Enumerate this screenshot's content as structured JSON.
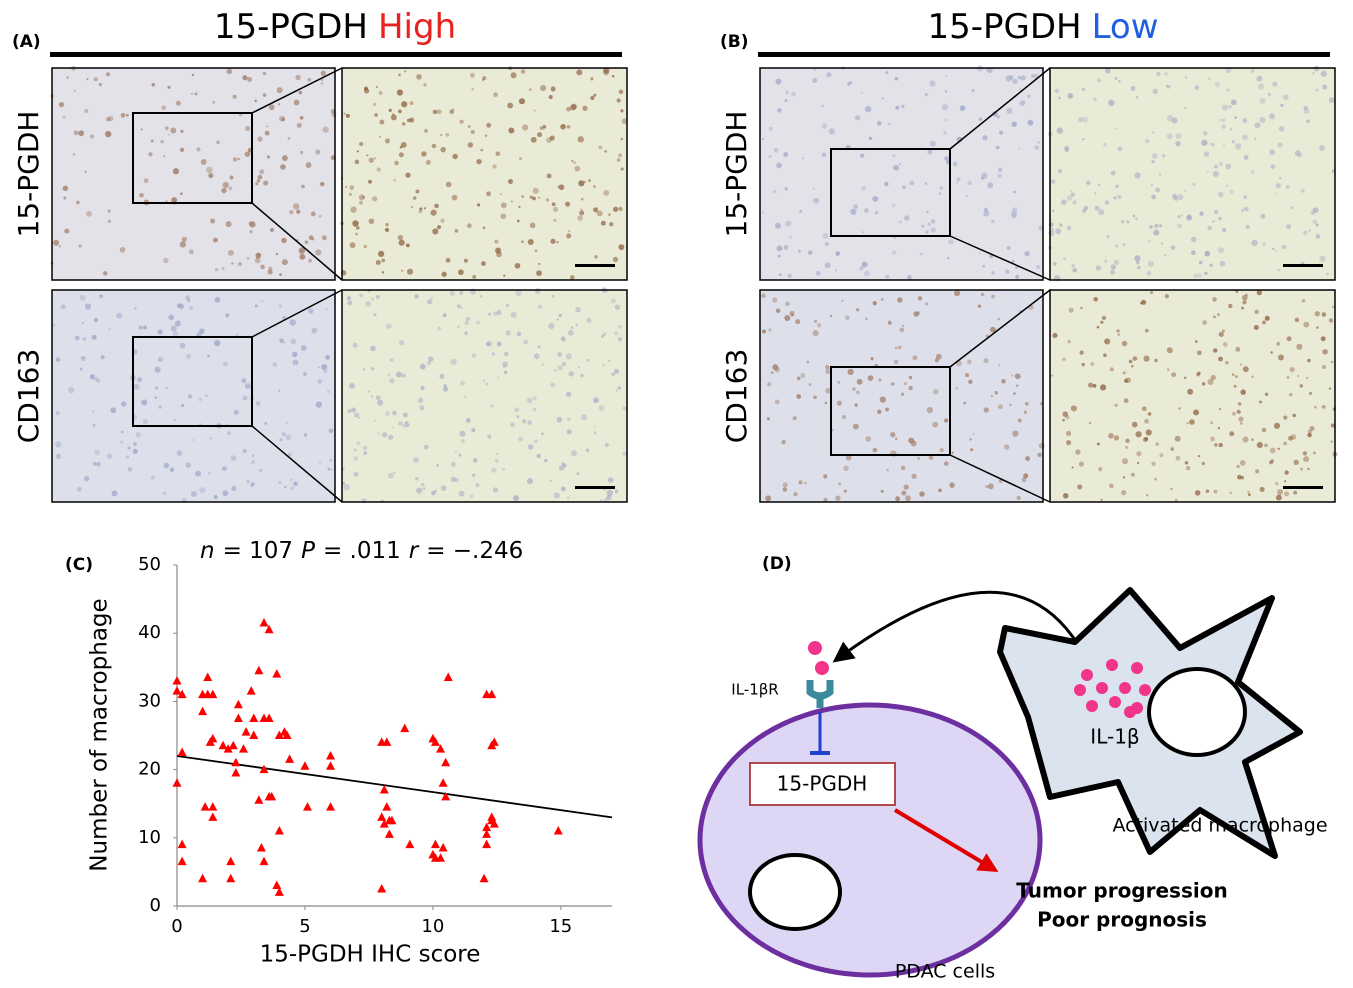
{
  "panel_a": {
    "label": "(A)",
    "title": "15-PGDH",
    "title_highlight": "High",
    "highlight_color": "#e8231f",
    "rows": [
      "15-PGDH",
      "CD163"
    ]
  },
  "panel_b": {
    "label": "(B)",
    "title": "15-PGDH",
    "title_highlight": "Low",
    "highlight_color": "#1f5fe0",
    "rows": [
      "15-PGDH",
      "CD163"
    ]
  },
  "chart_data": {
    "type": "scatter",
    "label": "(C)",
    "annotation": [
      {
        "text": "n",
        "italic": true
      },
      {
        "text": "= 107"
      },
      {
        "text": "P",
        "italic": true
      },
      {
        "text": "= .011"
      },
      {
        "text": "r",
        "italic": true
      },
      {
        "text": "= −.246"
      }
    ],
    "xlabel": "15-PGDH IHC score",
    "ylabel": "Number of macrophage",
    "x": [
      0,
      0,
      0.2,
      0,
      0.2,
      0.2,
      0.2,
      1.2,
      1,
      1.2,
      1.4,
      1,
      1.4,
      1.3,
      1.1,
      1.4,
      1.4,
      1,
      2.1,
      2.1,
      1.8,
      2,
      2.2,
      2.4,
      2.4,
      2.3,
      2.3,
      2.6,
      2.7,
      2.9,
      3,
      3,
      3.2,
      3.4,
      3.6,
      3.4,
      3.6,
      3.4,
      3.2,
      3.3,
      3.4,
      3.6,
      3.7,
      3.9,
      4,
      4.2,
      4.3,
      3.9,
      4,
      4,
      4.4,
      5,
      5.1,
      6,
      6,
      6,
      8,
      8.2,
      8.1,
      8,
      8.1,
      8.3,
      8,
      8.2,
      8.4,
      8.3,
      8.9,
      9.1,
      10,
      10.1,
      10.3,
      10.1,
      10,
      10.1,
      10.3,
      10.4,
      10.5,
      10.6,
      10.5,
      10.4,
      12.1,
      12.3,
      12,
      12.1,
      12.3,
      12.4,
      12.3,
      12.4,
      12.1,
      12.1,
      12.3,
      14.9
    ],
    "values": [
      31.5,
      33,
      31,
      18,
      9,
      6.5,
      22.5,
      33.5,
      31,
      31,
      31,
      28.5,
      24.5,
      24,
      14.5,
      13,
      14.5,
      4,
      6.5,
      4,
      23.5,
      23,
      23.5,
      29.5,
      27.5,
      21,
      19.5,
      23,
      25.5,
      31.5,
      27.5,
      25,
      34.5,
      41.5,
      40.5,
      27.5,
      27.5,
      20,
      15.5,
      8.5,
      6.5,
      16,
      16,
      34,
      25,
      25.5,
      25,
      3,
      2,
      11,
      21.5,
      20.5,
      14.5,
      22,
      20.5,
      14.5,
      24,
      24,
      17,
      13,
      12,
      12.5,
      2.5,
      14.5,
      12.5,
      10.5,
      26,
      9,
      24.5,
      24,
      23,
      9,
      7.5,
      7,
      7,
      18,
      16,
      33.5,
      21,
      8.5,
      31,
      31,
      4,
      9,
      23.5,
      24,
      13,
      12,
      11.5,
      10.5,
      12.5,
      11
    ],
    "color": "#ff0000",
    "xlim": [
      0,
      17
    ],
    "ylim": [
      0,
      50
    ],
    "xticks": [
      0,
      5,
      10,
      15
    ],
    "yticks": [
      0,
      10,
      20,
      30,
      40,
      50
    ],
    "trendline": {
      "x": [
        0,
        17
      ],
      "values": [
        22,
        13
      ],
      "color": "#000000"
    }
  },
  "panel_d": {
    "label": "(D)",
    "receptor": "IL-1βR",
    "enzyme": "15-PGDH",
    "cytokine": "IL-1β",
    "macrophage": "Activated macrophage",
    "outcomes": [
      "Tumor progression",
      "Poor prognosis"
    ],
    "cell": "PDAC cells"
  }
}
